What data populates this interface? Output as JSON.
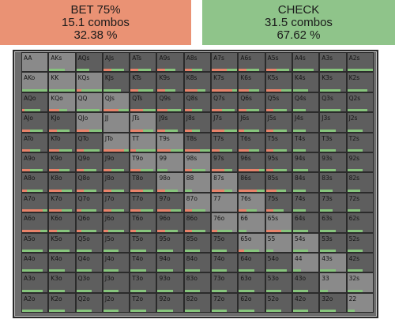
{
  "bet": {
    "title": "BET 75%",
    "combos": "15.1 combos",
    "pct": "32.38 %"
  },
  "check": {
    "title": "CHECK",
    "combos": "31.5 combos",
    "pct": "67.62 %"
  },
  "colors": {
    "bet": "#ea9274",
    "check": "#8fc48a",
    "cell": "#5e5e5e",
    "cell_highlight": "#8a8a8a"
  },
  "hands": [
    [
      "AA",
      "AKs",
      "AQs",
      "AJs",
      "ATs",
      "A9s",
      "A8s",
      "A7s",
      "A6s",
      "A5s",
      "A4s",
      "A3s",
      "A2s"
    ],
    [
      "AKo",
      "KK",
      "KQs",
      "KJs",
      "KTs",
      "K9s",
      "K8s",
      "K7s",
      "K6s",
      "K5s",
      "K4s",
      "K3s",
      "K2s"
    ],
    [
      "AQo",
      "KQo",
      "QQ",
      "QJs",
      "QTs",
      "Q9s",
      "Q8s",
      "Q7s",
      "Q6s",
      "Q5s",
      "Q4s",
      "Q3s",
      "Q2s"
    ],
    [
      "AJo",
      "KJo",
      "QJo",
      "JJ",
      "JTs",
      "J9s",
      "J8s",
      "J7s",
      "J6s",
      "J5s",
      "J4s",
      "J3s",
      "J2s"
    ],
    [
      "ATo",
      "KTo",
      "QTo",
      "JTo",
      "TT",
      "T9s",
      "T8s",
      "T7s",
      "T6s",
      "T5s",
      "T4s",
      "T3s",
      "T2s"
    ],
    [
      "A9o",
      "K9o",
      "Q9o",
      "J9o",
      "T9o",
      "99",
      "98s",
      "97s",
      "96s",
      "95s",
      "94s",
      "93s",
      "92s"
    ],
    [
      "A8o",
      "K8o",
      "Q8o",
      "J8o",
      "T8o",
      "98o",
      "88",
      "87s",
      "86s",
      "85s",
      "84s",
      "83s",
      "82s"
    ],
    [
      "A7o",
      "K7o",
      "Q7o",
      "J7o",
      "T7o",
      "97o",
      "87o",
      "77",
      "76s",
      "75s",
      "74s",
      "73s",
      "72s"
    ],
    [
      "A6o",
      "K6o",
      "Q6o",
      "J6o",
      "T6o",
      "96o",
      "86o",
      "76o",
      "66",
      "65s",
      "64s",
      "63s",
      "62s"
    ],
    [
      "A5o",
      "K5o",
      "Q5o",
      "J5o",
      "T5o",
      "95o",
      "85o",
      "75o",
      "65o",
      "55",
      "54s",
      "53s",
      "52s"
    ],
    [
      "A4o",
      "K4o",
      "Q4o",
      "J4o",
      "T4o",
      "94o",
      "84o",
      "74o",
      "64o",
      "54o",
      "44",
      "43s",
      "42s"
    ],
    [
      "A3o",
      "K3o",
      "Q3o",
      "J3o",
      "T3o",
      "93o",
      "83o",
      "73o",
      "63o",
      "53o",
      "43o",
      "33",
      "32s"
    ],
    [
      "A2o",
      "K2o",
      "Q2o",
      "J2o",
      "T2o",
      "92o",
      "82o",
      "72o",
      "62o",
      "52o",
      "42o",
      "32o",
      "22"
    ]
  ],
  "highlighted": [
    "AA",
    "KK",
    "QQ",
    "JJ",
    "TT",
    "99",
    "88",
    "77",
    "66",
    "55",
    "44",
    "33",
    "22",
    "AKs",
    "KQs",
    "QJs",
    "JTs",
    "T9s",
    "98s",
    "87s",
    "76s",
    "65s",
    "54s",
    "43s",
    "32s",
    "AKo",
    "KQo",
    "QJo",
    "JTo",
    "T9o",
    "98o",
    "87o",
    "76o",
    "65o"
  ],
  "bars": {
    "AKs": [
      0,
      0.6
    ],
    "AQs": [
      0,
      0.5
    ],
    "AJs": [
      0.3,
      0.5
    ],
    "ATs": [
      0.3,
      0.5
    ],
    "A9s": [
      0.3,
      0.4
    ],
    "A8s": [
      0.3,
      0.4
    ],
    "A7s": [
      0.6,
      0.4
    ],
    "A6s": [
      0.3,
      0.5
    ],
    "A5s": [
      0.4,
      0.5
    ],
    "A4s": [
      0,
      0.8
    ],
    "A3s": [
      0,
      0.9
    ],
    "A2s": [
      0,
      1
    ],
    "AKo": [
      0,
      1
    ],
    "KK": [
      0,
      1
    ],
    "KQs": [
      0.2,
      0.8
    ],
    "KJs": [
      0,
      0.7
    ],
    "KTs": [
      0.3,
      0.6
    ],
    "K9s": [
      0.3,
      0.4
    ],
    "K8s": [
      0.5,
      0.3
    ],
    "K7s": [
      0.8,
      0.2
    ],
    "K6s": [
      0.4,
      0.4
    ],
    "K5s": [
      0.6,
      0.4
    ],
    "K4s": [
      0,
      0.6
    ],
    "K3s": [
      0,
      0.8
    ],
    "K2s": [
      0,
      0.8
    ],
    "AQo": [
      0.1,
      0.6
    ],
    "KQo": [
      0.4,
      0.3
    ],
    "QQ": [
      0,
      0.9
    ],
    "QJs": [
      0.6,
      0.4
    ],
    "QTs": [
      0.5,
      0.5
    ],
    "Q9s": [
      0.4,
      0.5
    ],
    "Q8s": [
      0.3,
      0.4
    ],
    "Q7s": [
      0.4,
      0.5
    ],
    "Q6s": [
      0.3,
      0.5
    ],
    "Q5s": [
      0.3,
      0.5
    ],
    "Q4s": [
      0,
      0.5
    ],
    "Q3s": [
      0,
      0.8
    ],
    "Q2s": [
      0,
      0.8
    ],
    "AJo": [
      0.3,
      0.5
    ],
    "KJo": [
      0.3,
      0.5
    ],
    "QJo": [
      0.5,
      0.5
    ],
    "JJ": [
      0,
      0
    ],
    "JTs": [
      0.5,
      0.4
    ],
    "J9s": [
      0.3,
      0.5
    ],
    "J8s": [
      0.3,
      0.3
    ],
    "J7s": [
      0.5,
      0.5
    ],
    "J6s": [
      0.2,
      0.6
    ],
    "J5s": [
      0.3,
      0.5
    ],
    "J4s": [
      0,
      0.5
    ],
    "J3s": [
      0,
      0.6
    ],
    "J2s": [
      0,
      0.6
    ],
    "ATo": [
      0.3,
      0.4
    ],
    "KTo": [
      0.4,
      0.5
    ],
    "QTo": [
      0.3,
      0.6
    ],
    "JTo": [
      0.8,
      0.2
    ],
    "TT": [
      0.2,
      0.8
    ],
    "T9s": [
      0.5,
      0.5
    ],
    "T8s": [
      0.6,
      0.4
    ],
    "T7s": [
      0.3,
      0.5
    ],
    "T6s": [
      0.4,
      0.4
    ],
    "T5s": [
      0.3,
      0.5
    ],
    "T4s": [
      0,
      0.5
    ],
    "T3s": [
      0,
      0.6
    ],
    "T2s": [
      0,
      0.6
    ],
    "A9o": [
      0.3,
      0.5
    ],
    "K9o": [
      0.4,
      0.4
    ],
    "Q9o": [
      0.3,
      0.5
    ],
    "J9o": [
      0.3,
      0.5
    ],
    "T9o": [
      0.4,
      0.5
    ],
    "99": [
      0,
      0.4
    ],
    "98s": [
      0.3,
      0.5
    ],
    "97s": [
      0.5,
      0.3
    ],
    "96s": [
      0.8,
      0.2
    ],
    "95s": [
      0.3,
      0.5
    ],
    "94s": [
      0,
      0.6
    ],
    "93s": [
      0,
      0.6
    ],
    "92s": [
      0,
      0.6
    ],
    "A8o": [
      0.2,
      0.6
    ],
    "K8o": [
      0.5,
      0.4
    ],
    "Q8o": [
      0.3,
      0.5
    ],
    "J8o": [
      0.3,
      0.5
    ],
    "T8o": [
      0.5,
      0.4
    ],
    "98o": [
      0.3,
      0.5
    ],
    "88": [
      0,
      0.3
    ],
    "87s": [
      0.5,
      0.3
    ],
    "86s": [
      0.7,
      0.3
    ],
    "85s": [
      0.4,
      0.4
    ],
    "84s": [
      0,
      0.5
    ],
    "83s": [
      0,
      0.5
    ],
    "82s": [
      0,
      0.5
    ],
    "A7o": [
      0.8,
      0.2
    ],
    "K7o": [
      0.5,
      0.4
    ],
    "Q7o": [
      0.2,
      0.6
    ],
    "J7o": [
      0.3,
      0.5
    ],
    "T7o": [
      0.4,
      0.5
    ],
    "97o": [
      0.5,
      0.4
    ],
    "87o": [
      0.3,
      0.5
    ],
    "77": [
      0,
      0
    ],
    "76s": [
      0.3,
      0.4
    ],
    "75s": [
      0.3,
      0.4
    ],
    "74s": [
      0,
      0.5
    ],
    "73s": [
      0,
      0.5
    ],
    "72s": [
      0,
      0.5
    ],
    "A6o": [
      0.7,
      0.3
    ],
    "K6o": [
      0.3,
      0.5
    ],
    "Q6o": [
      0.2,
      0.6
    ],
    "J6o": [
      0.2,
      0.6
    ],
    "T6o": [
      0.2,
      0.6
    ],
    "96o": [
      0.3,
      0.5
    ],
    "86o": [
      0.3,
      0.5
    ],
    "76o": [
      0.2,
      0.6
    ],
    "66": [
      0,
      0.3
    ],
    "65s": [
      0.6,
      0.4
    ],
    "64s": [
      0,
      0.6
    ],
    "63s": [
      0,
      0.6
    ],
    "62s": [
      0,
      0.6
    ],
    "A5o": [
      0,
      0.8
    ],
    "K5o": [
      0,
      0.8
    ],
    "Q5o": [
      0,
      0.6
    ],
    "J5o": [
      0,
      0.6
    ],
    "T5o": [
      0,
      0.6
    ],
    "95o": [
      0,
      0.6
    ],
    "85o": [
      0,
      0.6
    ],
    "75o": [
      0,
      0.6
    ],
    "65o": [
      0.2,
      0.6
    ],
    "55": [
      0,
      0.3
    ],
    "54s": [
      0,
      0.6
    ],
    "53s": [
      0,
      0.6
    ],
    "52s": [
      0,
      0.6
    ],
    "A4o": [
      0,
      0.8
    ],
    "K4o": [
      0,
      0.6
    ],
    "Q4o": [
      0,
      0.6
    ],
    "J4o": [
      0,
      0.6
    ],
    "T4o": [
      0,
      0.6
    ],
    "94o": [
      0,
      0.6
    ],
    "84o": [
      0,
      0.6
    ],
    "74o": [
      0,
      0.6
    ],
    "64o": [
      0,
      0.6
    ],
    "54o": [
      0,
      0.8
    ],
    "44": [
      0,
      0.3
    ],
    "43s": [
      0,
      0.6
    ],
    "42s": [
      0,
      0.6
    ],
    "A3o": [
      0,
      0.8
    ],
    "K3o": [
      0,
      0.6
    ],
    "Q3o": [
      0,
      0.6
    ],
    "J3o": [
      0,
      0.6
    ],
    "T3o": [
      0,
      0.6
    ],
    "93o": [
      0,
      0.6
    ],
    "83o": [
      0,
      0.6
    ],
    "73o": [
      0,
      0.6
    ],
    "63o": [
      0,
      0.6
    ],
    "53o": [
      0,
      0.6
    ],
    "43o": [
      0,
      0.6
    ],
    "33": [
      0,
      0.3
    ],
    "32s": [
      0,
      0.6
    ],
    "A2o": [
      0,
      0.8
    ],
    "K2o": [
      0,
      0.6
    ],
    "Q2o": [
      0,
      0.6
    ],
    "J2o": [
      0,
      0.6
    ],
    "T2o": [
      0,
      0.6
    ],
    "92o": [
      0,
      0.6
    ],
    "82o": [
      0,
      0.6
    ],
    "72o": [
      0,
      0.6
    ],
    "62o": [
      0,
      0.6
    ],
    "52o": [
      0,
      0.6
    ],
    "42o": [
      0,
      0.6
    ],
    "32o": [
      0,
      0.6
    ],
    "22": [
      0,
      0.3
    ]
  }
}
